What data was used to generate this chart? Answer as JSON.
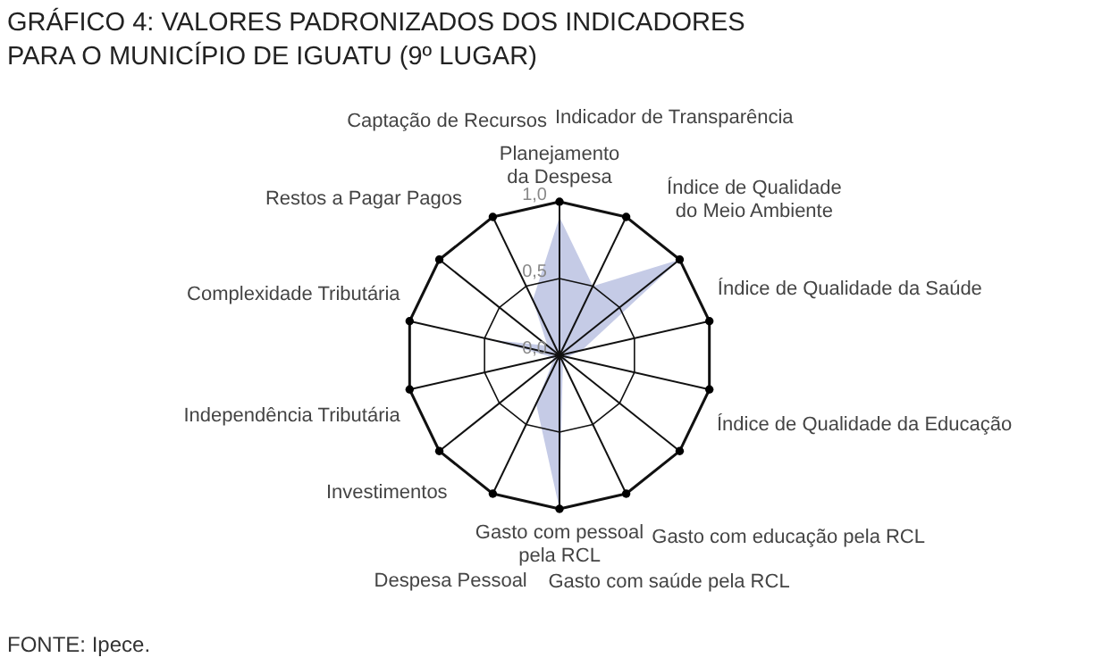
{
  "chart_data": {
    "type": "radar",
    "title": "GRÁFICO 4: VALORES PADRONIZADOS DOS INDICADORES PARA O MUNICÍPIO DE IGUATU (9º LUGAR)",
    "categories": [
      "Planejamento\nda Despesa",
      "Indicador de Transparência",
      "Índice de Qualidade do Meio Ambiente",
      "Índice de Qualidade da Saúde",
      "Índice de Qualidade da Educação",
      "Gasto com educação pela RCL",
      "Gasto com saúde pela RCL",
      "Gasto com pessoal\npela RCL",
      "Despesa Pessoal",
      "Investimentos",
      "Independência Tributária",
      "Complexidade Tributária",
      "Restos a Pagar Pagos",
      "Captação de Recursos"
    ],
    "series": [
      {
        "color": "#c5cbe6",
        "values": [
          0.9,
          0.5,
          1.0,
          0.15,
          0.05,
          0.05,
          0.05,
          1.0,
          0.35,
          0.05,
          0.05,
          0.45,
          0.1,
          0.4
        ]
      }
    ],
    "ylim": [
      0,
      1
    ],
    "yticks": [
      {
        "value": 0,
        "label": "0,0"
      },
      {
        "value": 0.5,
        "label": "0,5"
      },
      {
        "value": 1,
        "label": "1,0"
      }
    ],
    "grid": true,
    "annotations": [
      "FONTE: Ipece."
    ]
  }
}
